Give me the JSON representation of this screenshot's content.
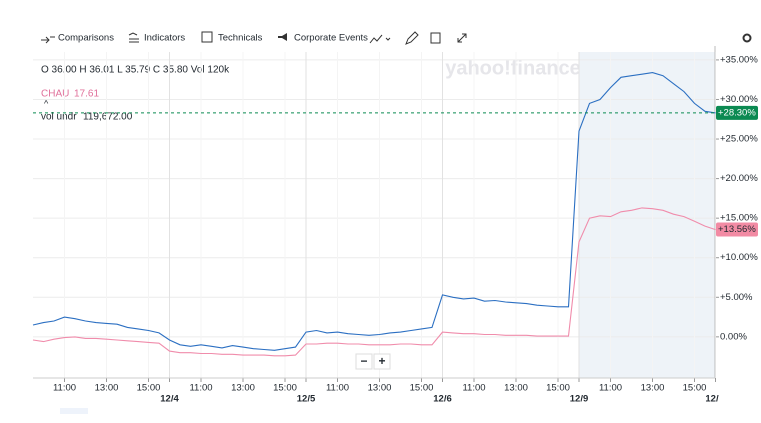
{
  "chart_data": {
    "type": "line",
    "toolbar": [
      "Comparisons",
      "Indicators",
      "Technicals",
      "Corporate Events"
    ],
    "ohlc": "O 36.00  H 36.01  L 35.79  C 35.80  Vol 120k",
    "volume_label": "vol undr",
    "volume_value": "119,672.00",
    "watermark": "yahoo!finance",
    "zoom": [
      "−",
      "+"
    ],
    "x": [
      "",
      "",
      "",
      "11:00",
      "",
      "",
      "",
      "13:00",
      "",
      "",
      "",
      "15:00",
      "",
      "12/4",
      "",
      "",
      "11:00",
      "",
      "",
      "",
      "13:00",
      "",
      "",
      "",
      "15:00",
      "",
      "12/5",
      "",
      "",
      "11:00",
      "",
      "",
      "",
      "13:00",
      "",
      "",
      "",
      "15:00",
      "",
      "12/6",
      "",
      "",
      "11:00",
      "",
      "",
      "",
      "13:00",
      "",
      "",
      "",
      "15:00",
      "",
      "12/9",
      "",
      "",
      "11:00",
      "",
      "",
      "",
      "13:00",
      "",
      "",
      "",
      "15:00",
      "",
      "12/"
    ],
    "day_labels": [
      "12/4",
      "12/5",
      "12/6",
      "12/9",
      "12/"
    ],
    "series": [
      {
        "color": "#2b6fc2",
        "values": [
          1.5,
          1.8,
          2.0,
          2.5,
          2.3,
          2.0,
          1.8,
          1.7,
          1.6,
          1.2,
          1.0,
          0.8,
          0.5,
          -0.4,
          -1.0,
          -1.2,
          -1.0,
          -1.2,
          -1.4,
          -1.1,
          -1.3,
          -1.5,
          -1.6,
          -1.7,
          -1.5,
          -1.3,
          0.6,
          0.8,
          0.5,
          0.6,
          0.4,
          0.3,
          0.2,
          0.3,
          0.5,
          0.6,
          0.8,
          1.0,
          1.2,
          5.3,
          5.0,
          4.8,
          4.9,
          4.5,
          4.6,
          4.4,
          4.3,
          4.2,
          4.0,
          3.9,
          3.8,
          3.8,
          26.0,
          29.5,
          30.0,
          31.5,
          32.8,
          33.0,
          33.2,
          33.4,
          33.0,
          32.0,
          31.0,
          29.5,
          28.5,
          28.3
        ],
        "end_label": "+28.30%",
        "label_color": "#0b8a52"
      },
      {
        "name": "CHAU",
        "last": "17.61",
        "color": "#f08cab",
        "values": [
          -0.4,
          -0.6,
          -0.3,
          -0.1,
          0,
          -0.2,
          -0.2,
          -0.3,
          -0.4,
          -0.5,
          -0.6,
          -0.7,
          -0.8,
          -1.8,
          -2.0,
          -2.0,
          -2.1,
          -2.1,
          -2.2,
          -2.2,
          -2.3,
          -2.3,
          -2.3,
          -2.4,
          -2.4,
          -2.3,
          -0.9,
          -0.9,
          -0.8,
          -0.8,
          -0.9,
          -0.9,
          -1.0,
          -1.0,
          -1.0,
          -0.9,
          -0.9,
          -1.0,
          -1.0,
          0.6,
          0.5,
          0.4,
          0.4,
          0.3,
          0.3,
          0.2,
          0.2,
          0.2,
          0.1,
          0.1,
          0.1,
          0.1,
          12.0,
          15.0,
          15.3,
          15.2,
          15.8,
          16.0,
          16.3,
          16.2,
          16.0,
          15.5,
          15.2,
          14.6,
          14.0,
          13.56
        ],
        "end_label": "+13.56%",
        "label_color": "#f28ba4"
      }
    ],
    "ylim": [
      -5.2,
      36
    ],
    "yticks": [
      {
        "value": 0,
        "label": "0.00%"
      },
      {
        "value": 5,
        "label": "+5.00%"
      },
      {
        "value": 10,
        "label": "+10.00%"
      },
      {
        "value": 15,
        "label": "+15.00%"
      },
      {
        "value": 20,
        "label": "+20.00%"
      },
      {
        "value": 25,
        "label": "+25.00%"
      },
      {
        "value": 30,
        "label": "+30.00%"
      },
      {
        "value": 35,
        "label": "+35.00%"
      }
    ],
    "grid": true
  }
}
